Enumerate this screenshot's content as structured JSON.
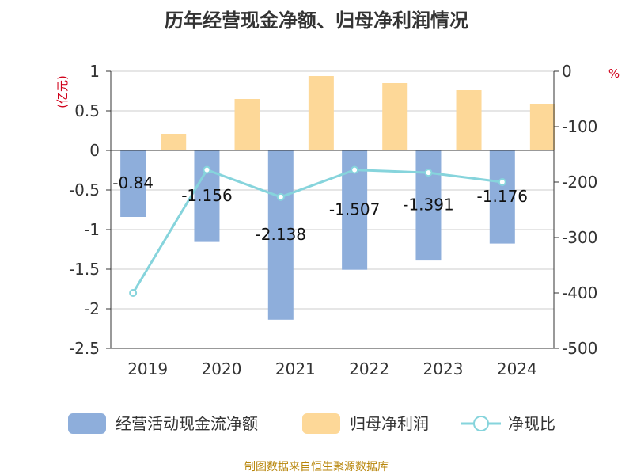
{
  "chart_data": {
    "type": "bar",
    "title": "历年经营现金净额、归母净利润情况",
    "categories": [
      "2019",
      "2020",
      "2021",
      "2022",
      "2023",
      "2024"
    ],
    "series": [
      {
        "name": "经营活动现金流净额",
        "type": "bar",
        "axis": "left",
        "color": "#8eaedb",
        "values": [
          -0.84,
          -1.156,
          -2.138,
          -1.507,
          -1.391,
          -1.176
        ],
        "labels": [
          "-0.84",
          "-1.156",
          "-2.138",
          "-1.507",
          "-1.391",
          "-1.176"
        ]
      },
      {
        "name": "归母净利润",
        "type": "bar",
        "axis": "left",
        "color": "#fdd898",
        "values": [
          0.21,
          0.65,
          0.94,
          0.85,
          0.76,
          0.59
        ]
      },
      {
        "name": "净现比",
        "type": "line",
        "axis": "right",
        "color": "#86d4dc",
        "values": [
          -400,
          -178,
          -227,
          -178,
          -183,
          -200
        ]
      }
    ],
    "y_left": {
      "unit": "(亿元)",
      "ylim": [
        -2.5,
        1
      ],
      "ticks": [
        "1",
        "0.5",
        "0",
        "-0.5",
        "-1",
        "-1.5",
        "-2",
        "-2.5"
      ]
    },
    "y_right": {
      "unit": "%",
      "ylim": [
        -500,
        0
      ],
      "ticks": [
        "0",
        "-100",
        "-200",
        "-300",
        "-400",
        "-500"
      ]
    },
    "grid": true,
    "legend_position": "bottom"
  },
  "source": "制图数据来自恒生聚源数据库"
}
